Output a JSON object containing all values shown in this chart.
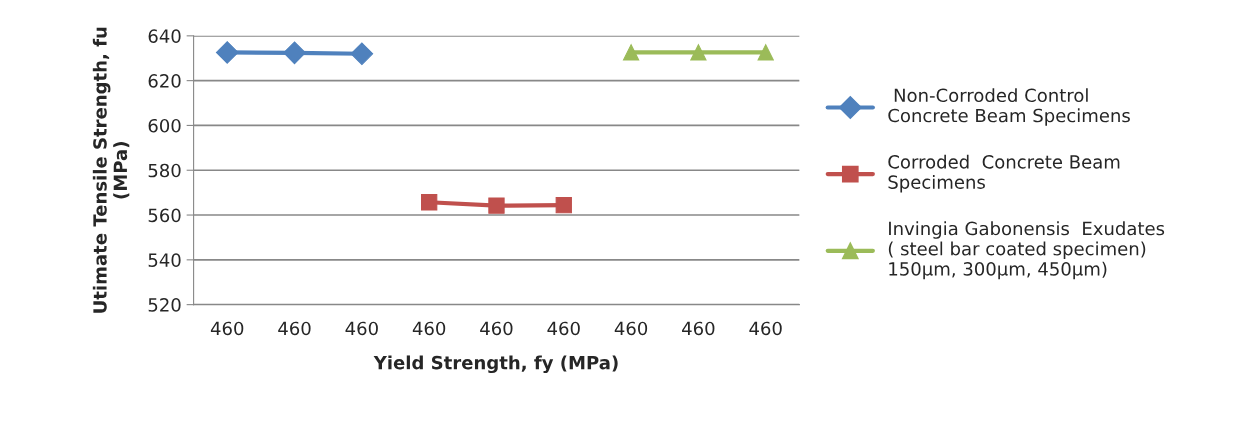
{
  "chart_data": {
    "type": "line",
    "xlabel": "Yield Strength, fy (MPa)",
    "ylabel": "Utimate Tensile Strength, fu\n(MPa)",
    "categories": [
      "460",
      "460",
      "460",
      "460",
      "460",
      "460",
      "460",
      "460",
      "460"
    ],
    "series": [
      {
        "name": " Non-Corroded Control\nConcrete Beam Specimens",
        "color": "#4f81bd",
        "marker": "diamond",
        "values": [
          632.6,
          632.4,
          632.0,
          null,
          null,
          null,
          null,
          null,
          null
        ]
      },
      {
        "name": "Corroded  Concrete Beam\nSpecimens",
        "color": "#c0504d",
        "marker": "square",
        "values": [
          null,
          null,
          null,
          565.7,
          564.2,
          564.4,
          null,
          null,
          null
        ]
      },
      {
        "name": "Invingia Gabonensis  Exudates\n( steel bar coated specimen)\n150µm, 300µm, 450µm)",
        "color": "#9bbb59",
        "marker": "triangle",
        "values": [
          null,
          null,
          null,
          null,
          null,
          null,
          632.6,
          632.6,
          632.6
        ]
      }
    ],
    "ylim": [
      520,
      640
    ],
    "yticks": [
      520,
      540,
      560,
      580,
      600,
      620,
      640
    ],
    "grid": "y",
    "legend": "right"
  }
}
